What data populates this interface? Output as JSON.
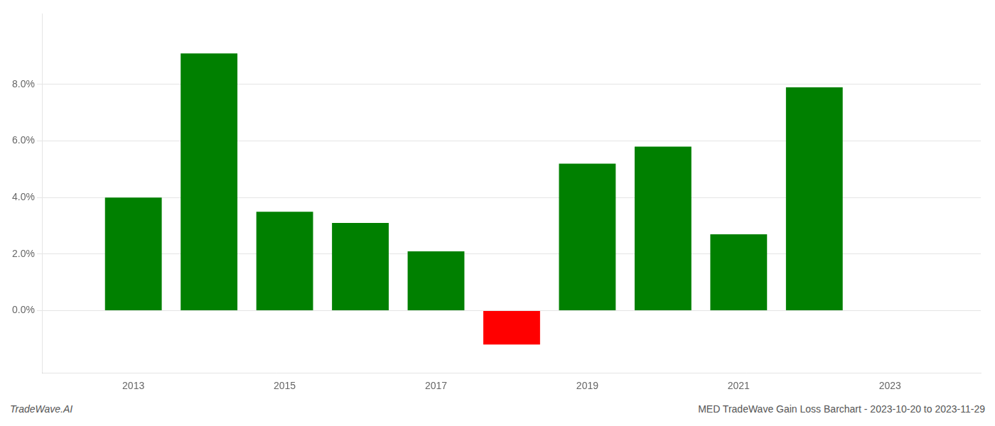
{
  "chart_data": {
    "type": "bar",
    "x": [
      2013,
      2014,
      2015,
      2016,
      2017,
      2018,
      2019,
      2020,
      2021,
      2022
    ],
    "values": [
      0.04,
      0.091,
      0.035,
      0.031,
      0.021,
      -0.012,
      0.052,
      0.058,
      0.027,
      0.079
    ],
    "colors": [
      "#008000",
      "#008000",
      "#008000",
      "#008000",
      "#008000",
      "#ff0000",
      "#008000",
      "#008000",
      "#008000",
      "#008000"
    ],
    "annotations": [
      "TradeWave.AI",
      "MED TradeWave Gain Loss Barchart - 2023-10-20 to 2023-11-29"
    ],
    "xlim": [
      2011.8,
      2024.2
    ],
    "xticks": [
      2013,
      2015,
      2017,
      2019,
      2021,
      2023
    ],
    "ylim": [
      -0.022,
      0.105
    ],
    "yticks": [
      {
        "value": 0.0,
        "label": "0.0%"
      },
      {
        "value": 0.02,
        "label": "2.0%"
      },
      {
        "value": 0.04,
        "label": "4.0%"
      },
      {
        "value": 0.06,
        "label": "6.0%"
      },
      {
        "value": 0.08,
        "label": "8.0%"
      }
    ],
    "grid": true
  }
}
